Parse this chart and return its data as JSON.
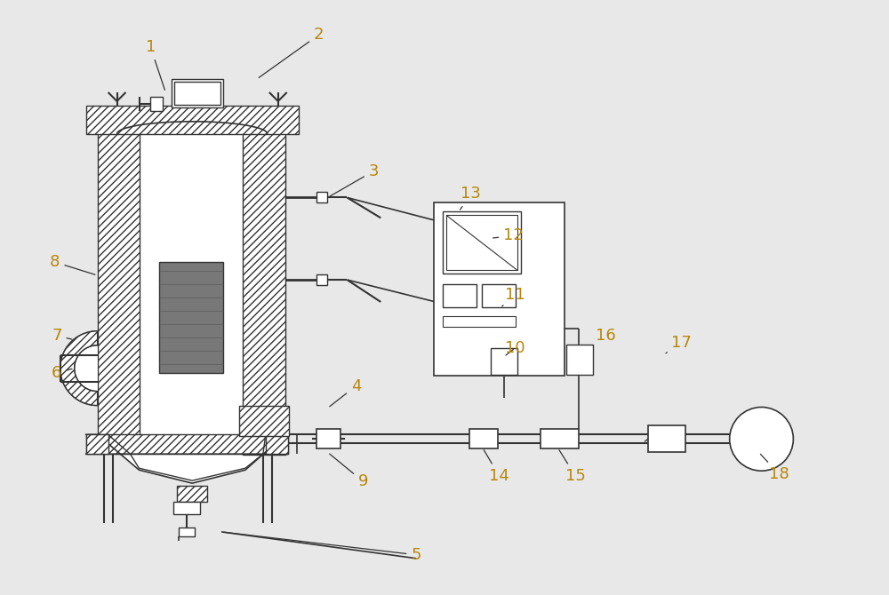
{
  "bg_color": "#e8e8e8",
  "line_color": "#333333",
  "label_color": "#b8860b",
  "label_fs": 13,
  "labels": {
    "1": [
      168,
      52,
      185,
      103
    ],
    "2": [
      358,
      38,
      288,
      88
    ],
    "3": [
      420,
      192,
      368,
      222
    ],
    "4": [
      400,
      435,
      368,
      460
    ],
    "5": [
      468,
      626,
      248,
      600
    ],
    "6": [
      62,
      420,
      82,
      415
    ],
    "7": [
      62,
      378,
      82,
      383
    ],
    "8": [
      60,
      295,
      108,
      310
    ],
    "9": [
      408,
      543,
      368,
      510
    ],
    "10": [
      580,
      392,
      567,
      402
    ],
    "11": [
      580,
      332,
      565,
      345
    ],
    "12": [
      578,
      265,
      552,
      268
    ],
    "13": [
      530,
      218,
      516,
      238
    ],
    "14": [
      562,
      537,
      543,
      505
    ],
    "15": [
      648,
      537,
      628,
      505
    ],
    "16": [
      682,
      378,
      668,
      390
    ],
    "17": [
      768,
      386,
      750,
      398
    ],
    "18": [
      878,
      535,
      855,
      510
    ]
  }
}
